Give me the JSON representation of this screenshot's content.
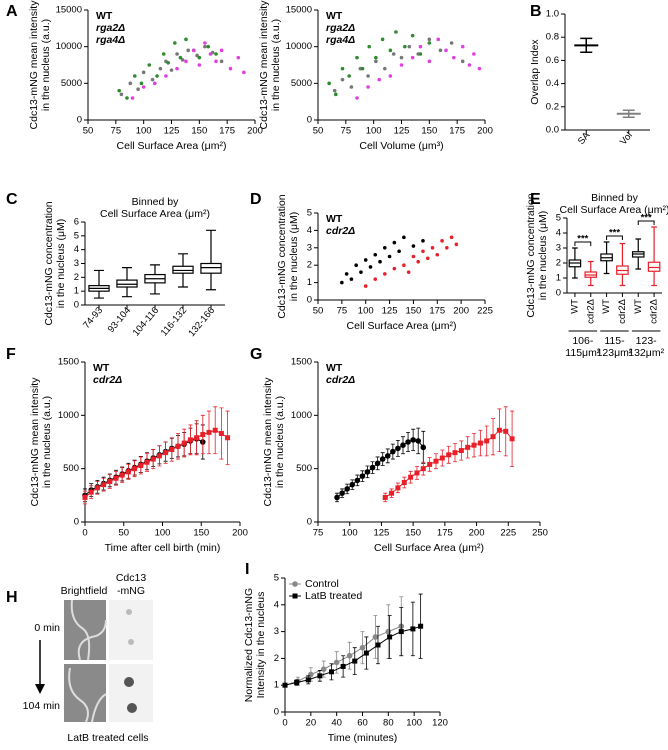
{
  "panel_labels": [
    "A",
    "B",
    "C",
    "D",
    "E",
    "F",
    "G",
    "H",
    "I"
  ],
  "image_panel": {
    "column_titles": [
      [
        "Brightfield"
      ],
      [
        "Cdc13",
        "-mNG"
      ]
    ],
    "time_labels": [
      "0 min",
      "104 min"
    ],
    "caption": "LatB treated cells"
  },
  "chart_data": [
    {
      "type": "scatter",
      "xlabel": [
        "Cell Surface Area (μm²)"
      ],
      "ylabel": [
        "Cdc13-mNG mean intensity",
        "in the nucleus (a.u.)"
      ],
      "xlim": [
        50,
        200
      ],
      "xticks": [
        50,
        75,
        100,
        125,
        150,
        175,
        200
      ],
      "ylim": [
        0,
        15000
      ],
      "yticks": [
        0,
        5000,
        10000,
        15000
      ],
      "series": [
        {
          "name": "WT",
          "color": "#777777",
          "x": [
            80,
            88,
            95,
            100,
            108,
            115,
            120,
            125,
            130,
            135,
            140,
            148,
            155,
            162,
            170
          ],
          "values": [
            3500,
            5000,
            4200,
            6500,
            5500,
            7000,
            8000,
            6800,
            9000,
            8200,
            9500,
            8800,
            10000,
            9200,
            8000
          ]
        },
        {
          "name": "rga2Δ",
          "color": "#2e8b2e",
          "x": [
            78,
            85,
            92,
            98,
            105,
            112,
            118,
            122,
            128,
            133,
            138,
            145,
            150,
            158,
            165
          ],
          "values": [
            4000,
            3000,
            6000,
            5000,
            7500,
            6000,
            9000,
            7800,
            10500,
            8500,
            11000,
            9500,
            8500,
            10000,
            9000
          ]
        },
        {
          "name": "rga4Δ",
          "color": "#e040e0",
          "x": [
            90,
            100,
            110,
            120,
            130,
            138,
            145,
            150,
            155,
            160,
            165,
            170,
            178,
            185,
            190
          ],
          "values": [
            3000,
            4500,
            5000,
            6000,
            7000,
            8000,
            9500,
            7500,
            10500,
            9000,
            8000,
            9500,
            7000,
            8500,
            6500
          ]
        }
      ]
    },
    {
      "type": "scatter",
      "xlabel": [
        "Cell Volume (μm³)"
      ],
      "ylabel": [
        "Cdc13-mNG mean intensity",
        "in the nucleus (a.u.)"
      ],
      "xlim": [
        50,
        200
      ],
      "xticks": [
        50,
        75,
        100,
        125,
        150,
        175,
        200
      ],
      "ylim": [
        0,
        15000
      ],
      "yticks": [
        0,
        5000,
        10000,
        15000
      ],
      "series": [
        {
          "name": "WT",
          "color": "#777777",
          "x": [
            65,
            72,
            80,
            88,
            95,
            102,
            110,
            118,
            125,
            132,
            140,
            150,
            160,
            170,
            180
          ],
          "values": [
            4000,
            5500,
            4500,
            7000,
            6000,
            8000,
            7000,
            9000,
            8500,
            10000,
            9000,
            11000,
            9500,
            10500,
            8000
          ]
        },
        {
          "name": "rga2Δ",
          "color": "#2e8b2e",
          "x": [
            60,
            66,
            72,
            78,
            85,
            90,
            96,
            102,
            108,
            115,
            120,
            128,
            135,
            142,
            150
          ],
          "values": [
            5000,
            3500,
            7000,
            6000,
            8500,
            7000,
            10000,
            8500,
            11000,
            9500,
            12000,
            10000,
            11500,
            9000,
            10500
          ]
        },
        {
          "name": "rga4Δ",
          "color": "#e040e0",
          "x": [
            85,
            95,
            105,
            115,
            125,
            135,
            142,
            150,
            158,
            165,
            172,
            180,
            186,
            190,
            195
          ],
          "values": [
            3000,
            4500,
            5500,
            6000,
            7500,
            8500,
            10000,
            8000,
            11000,
            9500,
            8500,
            10000,
            7500,
            9000,
            7000
          ]
        }
      ]
    },
    {
      "type": "meanerror",
      "ylabel": [
        "Overlap Index"
      ],
      "categories": [
        "SA",
        "Vol"
      ],
      "values": [
        0.73,
        0.14
      ],
      "errors": [
        0.06,
        0.03
      ],
      "colors": [
        "#000000",
        "#808080"
      ],
      "ylim": [
        0,
        1
      ],
      "yticks": [
        {
          "value": 0,
          "label": "0.0"
        },
        0.2,
        0.4,
        0.6,
        0.8,
        {
          "value": 1,
          "label": "1.0"
        }
      ]
    },
    {
      "type": "box",
      "title": [
        "Binned by",
        "Cell Surface Area (μm²)"
      ],
      "ylabel": [
        "Cdc13-mNG concentration",
        "in the nucleus (μM)"
      ],
      "categories": [
        "74-93",
        "93-104",
        "104-116",
        "116-132",
        "132-166"
      ],
      "color": "#000000",
      "min": [
        0.5,
        0.6,
        0.8,
        1.3,
        1.1
      ],
      "q1": [
        1.0,
        1.3,
        1.6,
        2.3,
        2.3
      ],
      "median": [
        1.2,
        1.5,
        1.9,
        2.5,
        2.7
      ],
      "q3": [
        1.4,
        1.8,
        2.2,
        2.8,
        3.0
      ],
      "max": [
        2.5,
        2.7,
        2.9,
        3.7,
        5.4
      ],
      "ylim": [
        0,
        6
      ],
      "yticks": [
        0,
        1,
        2,
        3,
        4,
        5,
        6
      ]
    },
    {
      "type": "scatter",
      "xlabel": [
        "Cell Surface Area (μm²)"
      ],
      "ylabel": [
        "Cdc13-mNG concentration",
        "in the nucleus (μM)"
      ],
      "xlim": [
        50,
        225
      ],
      "xticks": [
        50,
        75,
        100,
        125,
        150,
        175,
        200,
        225
      ],
      "ylim": [
        0,
        5
      ],
      "yticks": [
        0,
        1,
        2,
        3,
        4,
        5
      ],
      "series": [
        {
          "name": "WT",
          "color": "#000000",
          "x": [
            75,
            80,
            85,
            90,
            95,
            100,
            105,
            110,
            115,
            120,
            125,
            130,
            135,
            140,
            150,
            160
          ],
          "values": [
            1.0,
            1.5,
            1.2,
            2.0,
            1.6,
            2.3,
            1.9,
            2.6,
            2.2,
            3.0,
            2.5,
            3.3,
            2.8,
            3.6,
            3.1,
            3.4
          ]
        },
        {
          "name": "cdr2Δ",
          "color": "#e8202a",
          "x": [
            100,
            110,
            120,
            130,
            140,
            145,
            150,
            155,
            160,
            165,
            170,
            175,
            180,
            185,
            190,
            195
          ],
          "values": [
            0.8,
            1.2,
            1.5,
            1.8,
            2.0,
            1.6,
            2.5,
            2.2,
            2.8,
            2.4,
            3.0,
            2.6,
            3.4,
            3.0,
            3.6,
            3.2
          ]
        }
      ]
    },
    {
      "type": "box",
      "title": [
        "Binned by",
        "Cell Surface Area (μm²)"
      ],
      "ylabel": [
        "Cdc13-mNG concentration",
        "in the nucleus (μM)"
      ],
      "categories": [
        "WT",
        "cdr2Δ",
        "WT",
        "cdr2Δ",
        "WT",
        "cdr2Δ"
      ],
      "colors": [
        "#000000",
        "#e8202a",
        "#000000",
        "#e8202a",
        "#000000",
        "#e8202a"
      ],
      "min": [
        1.0,
        0.5,
        1.3,
        0.5,
        1.6,
        0.5
      ],
      "q1": [
        1.75,
        1.05,
        2.15,
        1.25,
        2.4,
        1.45
      ],
      "median": [
        2.0,
        1.2,
        2.35,
        1.5,
        2.6,
        1.7
      ],
      "q3": [
        2.2,
        1.4,
        2.6,
        1.8,
        2.75,
        2.05
      ],
      "max": [
        3.0,
        2.1,
        3.4,
        3.3,
        3.6,
        4.4
      ],
      "groups": [
        [
          "106-",
          "115μm²"
        ],
        [
          "115-",
          "123μm²"
        ],
        [
          "123-",
          "132μm²"
        ]
      ],
      "significance": [
        "***",
        "***",
        "***"
      ],
      "ylim": [
        0,
        5
      ],
      "yticks": [
        0,
        1,
        2,
        3,
        4,
        5
      ]
    },
    {
      "type": "line",
      "xlabel": [
        "Time after cell birth (min)"
      ],
      "ylabel": [
        "Cdc13-mNG mean intensity",
        "in the nucleus (a.u.)"
      ],
      "xlim": [
        0,
        200
      ],
      "xticks": [
        0,
        50,
        100,
        150,
        200
      ],
      "ylim": [
        0,
        1500
      ],
      "yticks": [
        0,
        500,
        1000,
        1500
      ],
      "series": [
        {
          "name": "WT",
          "color": "#000000",
          "marker": "circle",
          "x": [
            0,
            8,
            16,
            24,
            32,
            40,
            48,
            56,
            64,
            72,
            80,
            88,
            96,
            104,
            112,
            120,
            128,
            136,
            144,
            152
          ],
          "values": [
            250,
            300,
            330,
            360,
            390,
            420,
            450,
            480,
            510,
            540,
            570,
            600,
            630,
            660,
            690,
            710,
            730,
            760,
            780,
            750
          ],
          "errors": [
            60,
            60,
            60,
            60,
            60,
            65,
            65,
            70,
            70,
            75,
            80,
            80,
            85,
            90,
            95,
            100,
            110,
            120,
            140,
            160
          ]
        },
        {
          "name": "cdr2Δ",
          "color": "#e8202a",
          "marker": "square",
          "x": [
            0,
            8,
            16,
            24,
            32,
            40,
            48,
            56,
            64,
            72,
            80,
            88,
            96,
            104,
            112,
            120,
            128,
            136,
            144,
            152,
            160,
            168,
            176,
            184
          ],
          "values": [
            230,
            280,
            320,
            350,
            380,
            410,
            440,
            470,
            500,
            530,
            560,
            590,
            620,
            650,
            680,
            710,
            740,
            770,
            790,
            820,
            840,
            860,
            830,
            790
          ],
          "errors": [
            60,
            60,
            60,
            60,
            65,
            65,
            70,
            70,
            75,
            80,
            85,
            90,
            95,
            100,
            110,
            120,
            130,
            140,
            160,
            180,
            200,
            220,
            240,
            250
          ]
        }
      ]
    },
    {
      "type": "line",
      "xlabel": [
        "Cell Surface Area (μm²)"
      ],
      "ylabel": [
        "Cdc13-mNG mean intensity",
        "in the nucleus (a.u.)"
      ],
      "xlim": [
        75,
        250
      ],
      "xticks": [
        75,
        100,
        125,
        150,
        175,
        200,
        225,
        250
      ],
      "ylim": [
        0,
        1500
      ],
      "yticks": [
        0,
        500,
        1000,
        1500
      ],
      "series": [
        {
          "name": "WT",
          "color": "#000000",
          "marker": "circle",
          "x": [
            90,
            94,
            98,
            102,
            106,
            110,
            114,
            118,
            122,
            126,
            130,
            134,
            138,
            142,
            146,
            150,
            154,
            158
          ],
          "values": [
            230,
            270,
            310,
            350,
            390,
            430,
            470,
            510,
            550,
            590,
            620,
            660,
            690,
            720,
            750,
            770,
            760,
            700
          ],
          "errors": [
            40,
            40,
            45,
            45,
            50,
            50,
            55,
            55,
            60,
            60,
            65,
            70,
            75,
            80,
            90,
            100,
            120,
            150
          ]
        },
        {
          "name": "cdr2Δ",
          "color": "#e8202a",
          "marker": "square",
          "x": [
            128,
            133,
            138,
            143,
            148,
            153,
            158,
            163,
            168,
            173,
            178,
            183,
            188,
            193,
            198,
            203,
            208,
            213,
            218,
            223,
            228
          ],
          "values": [
            230,
            270,
            320,
            370,
            420,
            460,
            500,
            540,
            570,
            600,
            630,
            650,
            670,
            700,
            720,
            740,
            760,
            800,
            860,
            850,
            780
          ],
          "errors": [
            40,
            40,
            45,
            50,
            55,
            60,
            60,
            65,
            70,
            75,
            80,
            85,
            90,
            100,
            110,
            120,
            140,
            170,
            200,
            230,
            260
          ]
        }
      ]
    },
    {
      "type": "line",
      "xlabel": [
        "Time (minutes)"
      ],
      "ylabel": [
        "Normalized Cdc13-mNG",
        "Intensity in the nucleus"
      ],
      "xlim": [
        0,
        120
      ],
      "xticks": [
        0,
        20,
        40,
        60,
        80,
        100,
        120
      ],
      "ylim": [
        0,
        5
      ],
      "yticks": [
        0,
        1,
        2,
        3,
        4,
        5
      ],
      "series": [
        {
          "name": "Control",
          "color": "#888888",
          "marker": "circle",
          "x": [
            0,
            10,
            20,
            30,
            40,
            50,
            60,
            70,
            80,
            90
          ],
          "values": [
            1.0,
            1.15,
            1.4,
            1.6,
            1.85,
            2.1,
            2.4,
            2.8,
            3.0,
            3.2
          ],
          "errors": [
            0.05,
            0.15,
            0.25,
            0.3,
            0.4,
            0.5,
            0.6,
            0.8,
            1.0,
            1.1
          ]
        },
        {
          "name": "LatB treated",
          "color": "#000000",
          "marker": "square",
          "x": [
            0,
            9,
            18,
            27,
            36,
            45,
            54,
            63,
            72,
            81,
            90,
            99,
            105
          ],
          "values": [
            1.0,
            1.1,
            1.2,
            1.35,
            1.5,
            1.7,
            1.9,
            2.2,
            2.5,
            2.8,
            3.0,
            3.1,
            3.2
          ],
          "errors": [
            0.05,
            0.1,
            0.15,
            0.2,
            0.3,
            0.4,
            0.5,
            0.6,
            0.7,
            0.8,
            0.9,
            1.0,
            1.2
          ]
        }
      ]
    }
  ]
}
